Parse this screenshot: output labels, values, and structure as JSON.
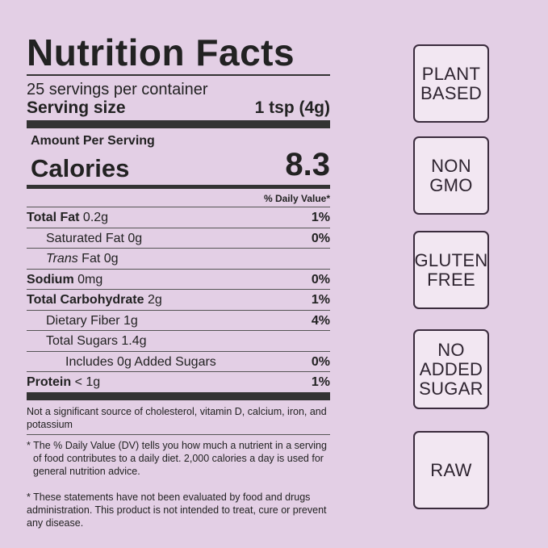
{
  "nutrition": {
    "title": "Nutrition Facts",
    "servings_per_container": "25 servings per container",
    "serving_size_label": "Serving size",
    "serving_size_value": "1 tsp (4g)",
    "amount_per_serving": "Amount Per Serving",
    "calories_label": "Calories",
    "calories_value": "8.3",
    "daily_value_header": "% Daily Value*",
    "rows": [
      {
        "name": "Total Fat",
        "amount": " 0.2g",
        "dv": "1%"
      },
      {
        "name": "Saturated Fat",
        "amount": " 0g",
        "dv": "0%"
      },
      {
        "name_italic": "Trans",
        "name": " Fat",
        "amount": " 0g",
        "dv": ""
      },
      {
        "name": "Sodium",
        "amount": " 0mg",
        "dv": "0%"
      },
      {
        "name": "Total Carbohydrate",
        "amount": " 2g",
        "dv": "1%"
      },
      {
        "name": "Dietary Fiber",
        "amount": " 1g",
        "dv": "4%"
      },
      {
        "name": "Total Sugars",
        "amount": " 1.4g",
        "dv": ""
      },
      {
        "name": "Includes 0g Added Sugars",
        "amount": "",
        "dv": "0%"
      },
      {
        "name": "Protein",
        "amount": " < 1g",
        "dv": "1%"
      }
    ],
    "not_significant_note": "Not a significant source of cholesterol, vitamin D, calcium, iron, and potassium",
    "dv_note": "* The % Daily Value (DV) tells you how much a nutrient in a serving of food contributes to a daily diet. 2,000 calories a day is used for general nutrition advice.",
    "statement_note": "* These statements have not been evaluated by food and drugs administration. This product is not intended to treat, cure or prevent any disease."
  },
  "badges": {
    "plant_based": [
      "PLANT",
      "BASED"
    ],
    "non_gmo": [
      "NON",
      "GMO"
    ],
    "gluten_free": [
      "GLUTEN",
      "FREE"
    ],
    "no_added_sugar": [
      "NO",
      "ADDED",
      "SUGAR"
    ],
    "raw": [
      "RAW"
    ]
  },
  "colors": {
    "background": "#e3cfe5",
    "badge_fill": "#f2e7f2",
    "badge_border": "#3a2b3d",
    "text": "#222222"
  }
}
